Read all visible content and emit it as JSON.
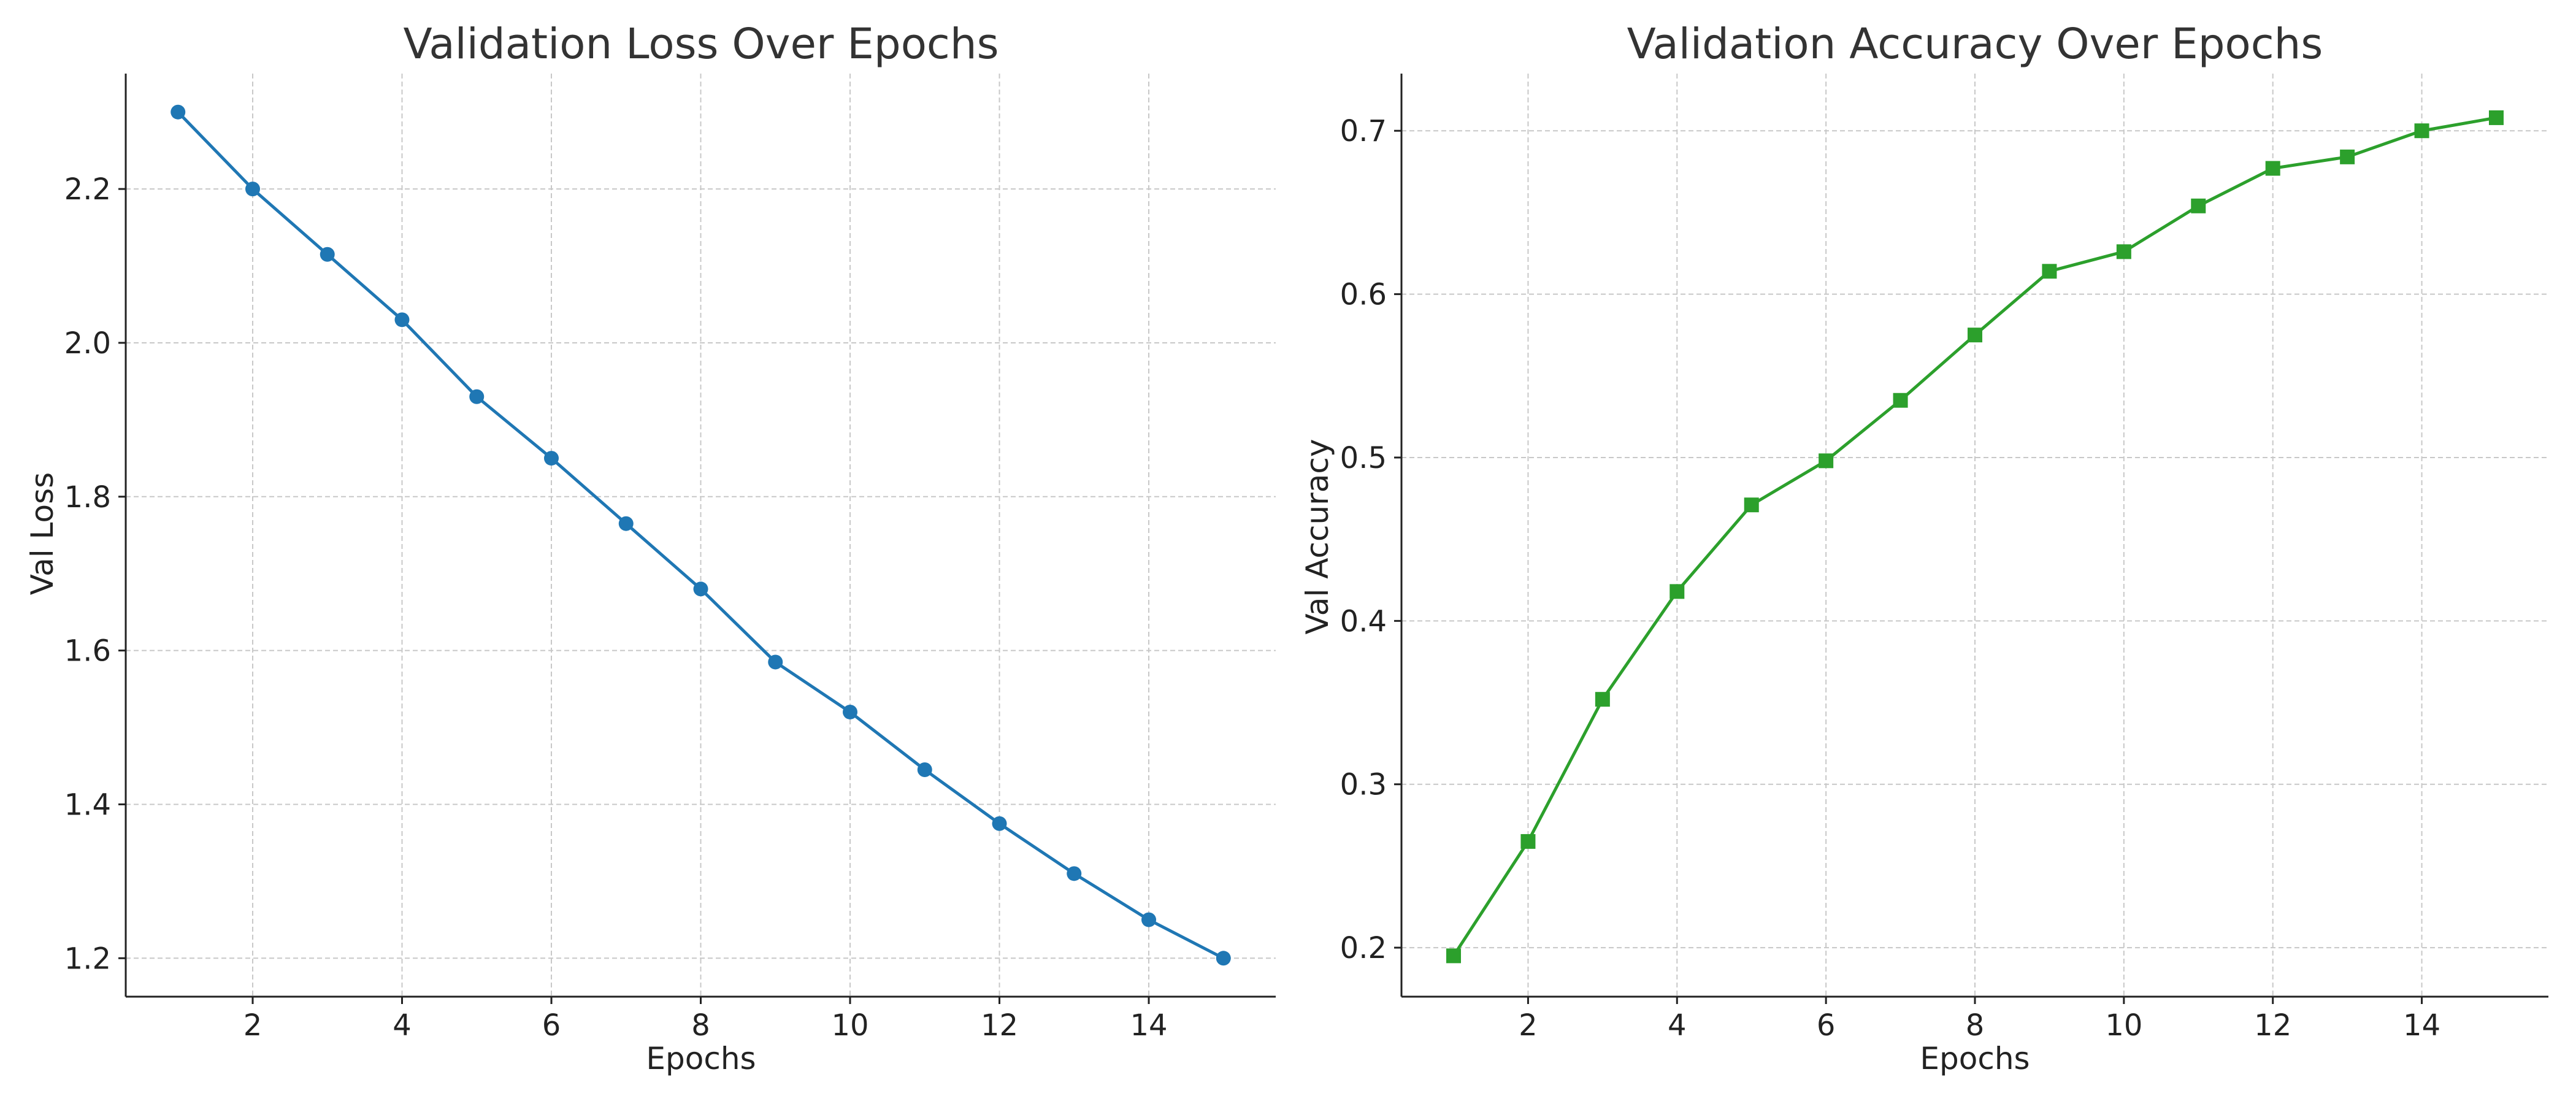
{
  "chart_data": [
    {
      "type": "line",
      "title": "Validation Loss Over Epochs",
      "xlabel": "Epochs",
      "ylabel": "Val Loss",
      "x": [
        1,
        2,
        3,
        4,
        5,
        6,
        7,
        8,
        9,
        10,
        11,
        12,
        13,
        14,
        15
      ],
      "series": [
        {
          "values": [
            2.3,
            2.2,
            2.115,
            2.03,
            1.93,
            1.85,
            1.765,
            1.68,
            1.585,
            1.52,
            1.445,
            1.375,
            1.31,
            1.25,
            1.2
          ],
          "color": "#1f77b4",
          "marker": "circle"
        }
      ],
      "xlim": [
        0.3,
        15.7
      ],
      "ylim": [
        1.15,
        2.35
      ],
      "xticks": [
        2,
        4,
        6,
        8,
        10,
        12,
        14
      ],
      "yticks": [
        1.2,
        1.4,
        1.6,
        1.8,
        2.0,
        2.2
      ],
      "xtick_labels": [
        "2",
        "4",
        "6",
        "8",
        "10",
        "12",
        "14"
      ],
      "ytick_labels": [
        "1.2",
        "1.4",
        "1.6",
        "1.8",
        "2.0",
        "2.2"
      ],
      "grid": true
    },
    {
      "type": "line",
      "title": "Validation Accuracy Over Epochs",
      "xlabel": "Epochs",
      "ylabel": "Val Accuracy",
      "x": [
        1,
        2,
        3,
        4,
        5,
        6,
        7,
        8,
        9,
        10,
        11,
        12,
        13,
        14,
        15
      ],
      "series": [
        {
          "values": [
            0.195,
            0.265,
            0.352,
            0.418,
            0.471,
            0.498,
            0.535,
            0.575,
            0.614,
            0.626,
            0.654,
            0.677,
            0.684,
            0.7,
            0.708
          ],
          "color": "#2ca02c",
          "marker": "square"
        }
      ],
      "xlim": [
        0.3,
        15.7
      ],
      "ylim": [
        0.17,
        0.735
      ],
      "xticks": [
        2,
        4,
        6,
        8,
        10,
        12,
        14
      ],
      "yticks": [
        0.2,
        0.3,
        0.4,
        0.5,
        0.6,
        0.7
      ],
      "xtick_labels": [
        "2",
        "4",
        "6",
        "8",
        "10",
        "12",
        "14"
      ],
      "ytick_labels": [
        "0.2",
        "0.3",
        "0.4",
        "0.5",
        "0.6",
        "0.7"
      ],
      "grid": true
    }
  ]
}
